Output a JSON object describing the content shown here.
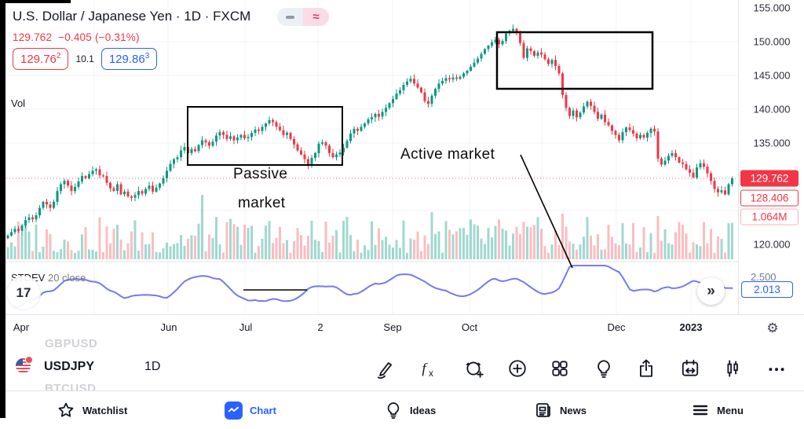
{
  "header": {
    "title": "U.S. Dollar / Japanese Yen · 1D · FXCM",
    "last": "129.762",
    "change": "−0.405",
    "change_pct": "(−0.31%)",
    "bid": "129.76",
    "bid_sup": "2",
    "spread": "10.1",
    "ask": "129.86",
    "ask_sup": "3",
    "vol_label": "Vol",
    "toggle_wave": "≈"
  },
  "price_scale": {
    "labels": [
      "155.000",
      "150.000",
      "145.000",
      "140.000",
      "135.000",
      "120.000"
    ],
    "badge_last": "129.762",
    "badge_prev": "128.406",
    "badge_volume": "1.064M"
  },
  "indicator": {
    "name": "STDEV",
    "params": "20 close",
    "value": "2.013",
    "ghost_scale_value": "2.500",
    "collapse_glyph": "»"
  },
  "watermark": "17",
  "time_axis": {
    "labels": [
      "Apr",
      "Jun",
      "Jul",
      "2",
      "Sep",
      "Oct",
      "Dec",
      "2023"
    ],
    "gear_glyph": "⚙"
  },
  "annotations": {
    "passive_line1": "Passive",
    "passive_line2": "market",
    "active": "Active market"
  },
  "watchlist_ghosts": {
    "above": "GBPUSD",
    "below": "BTCUSD"
  },
  "toolbar": {
    "symbol": "USDJPY",
    "interval": "1D",
    "icons": [
      "draw-icon",
      "function-icon",
      "alert-icon",
      "add-icon",
      "layout-grid-icon",
      "idea-icon",
      "share-icon",
      "calendar-range-icon",
      "compare-candles-icon",
      "more-icon"
    ]
  },
  "bottom_nav": [
    {
      "label": "Watchlist",
      "active": false
    },
    {
      "label": "Chart",
      "active": true
    },
    {
      "label": "Ideas",
      "active": false
    },
    {
      "label": "News",
      "active": false
    },
    {
      "label": "Menu",
      "active": false
    }
  ],
  "colors": {
    "up": "#089981",
    "down": "#f23645",
    "accent_blue": "#2962ff",
    "indicator_line": "#7579f3",
    "annotation": "#000000",
    "grid": "#f1f3f8"
  },
  "chart_data": {
    "type": "candlestick",
    "title": "U.S. Dollar / Japanese Yen",
    "interval": "1D",
    "exchange": "FXCM",
    "x_tick_labels": [
      "Apr",
      "Jun",
      "Jul",
      "2",
      "Sep",
      "Oct",
      "Dec",
      "2023"
    ],
    "y_tick_labels": [
      155.0,
      150.0,
      145.0,
      140.0,
      135.0,
      120.0
    ],
    "ylim": [
      117.8,
      156.2
    ],
    "last_price": 129.762,
    "legend": "STDEV 20 close = 2.013, Volume = 1.064M",
    "closes": [
      121.3,
      121.8,
      122.3,
      122.0,
      122.8,
      123.6,
      124.0,
      123.7,
      124.3,
      125.4,
      126.3,
      125.9,
      125.4,
      126.3,
      127.9,
      128.9,
      129.4,
      128.7,
      127.9,
      128.5,
      129.3,
      130.1,
      129.8,
      130.4,
      130.9,
      131.1,
      130.2,
      130.1,
      129.1,
      128.3,
      127.9,
      128.9,
      127.4,
      127.8,
      127.1,
      126.9,
      127.3,
      127.9,
      127.5,
      128.2,
      128.7,
      127.8,
      128.4,
      129.0,
      129.8,
      130.9,
      131.9,
      132.6,
      132.9,
      133.9,
      134.4,
      133.5,
      134.1,
      133.8,
      134.7,
      135.4,
      135.1,
      134.6,
      135.2,
      136.1,
      136.6,
      136.2,
      135.6,
      136.0,
      135.4,
      135.8,
      136.2,
      135.7,
      135.9,
      136.5,
      137.0,
      136.8,
      137.4,
      137.9,
      138.4,
      138.1,
      137.4,
      136.9,
      136.2,
      136.5,
      135.6,
      134.8,
      133.9,
      133.3,
      132.6,
      131.7,
      132.8,
      133.5,
      134.9,
      135.1,
      134.6,
      133.5,
      132.9,
      133.3,
      133.6,
      134.3,
      135.3,
      136.4,
      137.1,
      136.8,
      137.4,
      137.9,
      138.5,
      138.8,
      139.3,
      138.9,
      139.6,
      140.2,
      140.9,
      141.5,
      142.3,
      142.8,
      143.6,
      144.1,
      144.5,
      143.8,
      143.2,
      142.5,
      141.2,
      140.8,
      142.0,
      143.0,
      143.8,
      144.2,
      144.6,
      144.4,
      144.7,
      144.5,
      144.8,
      145.3,
      145.7,
      146.3,
      146.9,
      147.5,
      148.2,
      148.9,
      149.4,
      149.9,
      150.3,
      149.6,
      150.1,
      151.2,
      151.6,
      151.9,
      151.4,
      149.8,
      147.6,
      149.0,
      148.6,
      147.9,
      148.4,
      148.1,
      147.4,
      146.7,
      147.3,
      146.4,
      145.3,
      142.1,
      140.2,
      139.0,
      139.8,
      138.8,
      139.5,
      140.4,
      141.1,
      140.5,
      139.6,
      138.6,
      139.2,
      138.1,
      137.6,
      136.8,
      136.2,
      135.4,
      136.6,
      137.3,
      136.9,
      136.4,
      135.7,
      136.2,
      135.8,
      136.5,
      137.1,
      136.7,
      132.7,
      131.8,
      132.4,
      133.1,
      133.5,
      132.9,
      132.1,
      131.9,
      131.1,
      130.6,
      129.9,
      131.4,
      132.0,
      131.5,
      130.5,
      129.4,
      128.2,
      127.7,
      128.0,
      127.4,
      128.9,
      129.762
    ],
    "annotation_boxes": [
      {
        "label": "Passive market",
        "price_range": [
          131.7,
          140.3
        ]
      },
      {
        "label": "Active market",
        "price_range": [
          143.0,
          151.4
        ]
      }
    ]
  }
}
